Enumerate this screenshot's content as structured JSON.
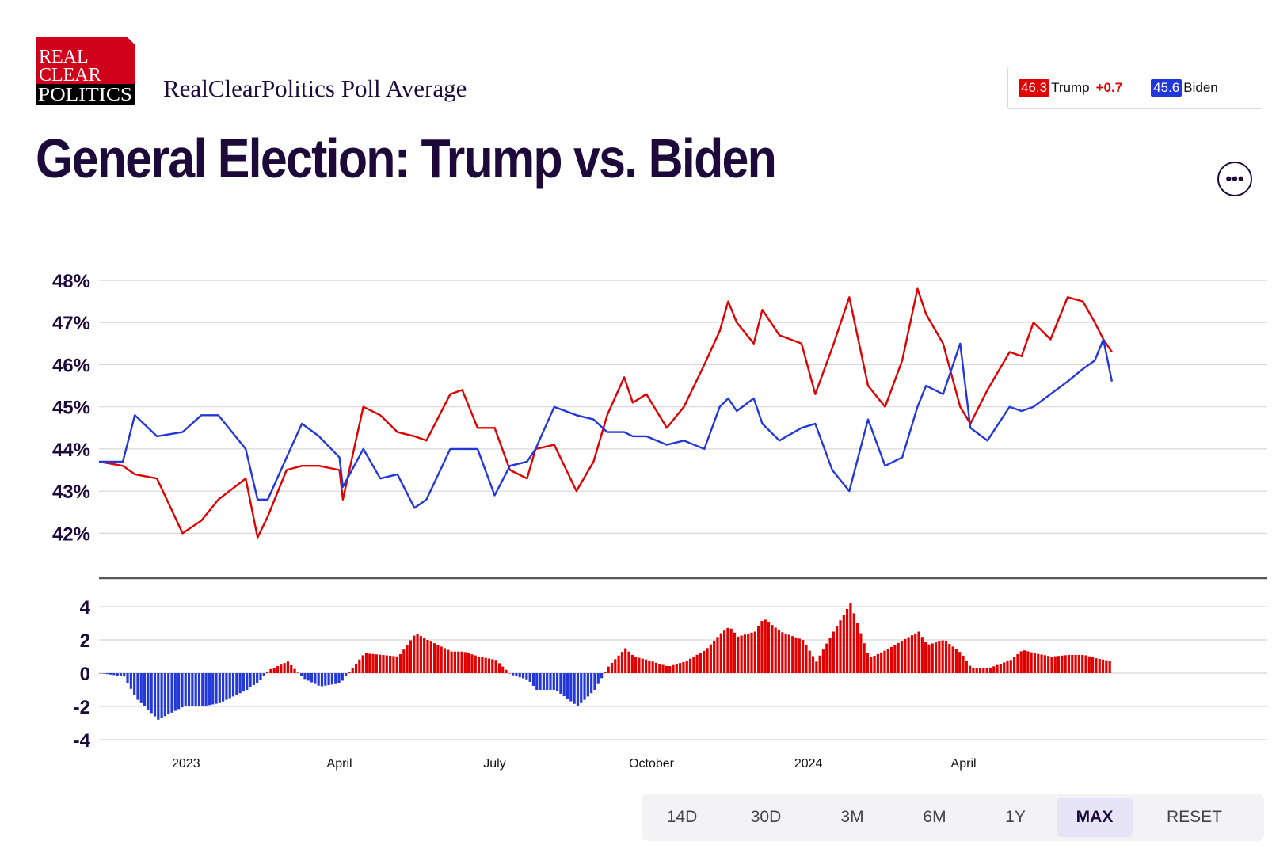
{
  "header": {
    "logo_lines": [
      "REAL",
      "CLEAR",
      "POLITICS"
    ],
    "subtitle": "RealClearPolitics Poll Average",
    "title": "General Election: Trump vs. Biden"
  },
  "legend": {
    "trump": {
      "value": "46.3",
      "name": "Trump",
      "change": "+0.7",
      "color": "#e00000"
    },
    "biden": {
      "value": "45.6",
      "name": "Biden",
      "color": "#2338d8"
    }
  },
  "icons": {
    "more": "more-options-icon"
  },
  "ranges": {
    "items": [
      "14D",
      "30D",
      "3M",
      "6M",
      "1Y",
      "MAX",
      "RESET"
    ],
    "selected": "MAX"
  },
  "colors": {
    "trump": "#e00000",
    "biden": "#2338d8",
    "text": "#1d0a3a",
    "grid": "#d8d8d8"
  },
  "chart_data": [
    {
      "type": "line",
      "y_ticks": [
        "48%",
        "47%",
        "46%",
        "45%",
        "44%",
        "43%",
        "42%"
      ],
      "ylim": [
        41.5,
        48.3
      ],
      "xlim": [
        "2022-11-11",
        "2024-07-24"
      ],
      "x_ticks": [
        {
          "label": "2023",
          "date": "2023-01-01"
        },
        {
          "label": "April",
          "date": "2023-04-01"
        },
        {
          "label": "July",
          "date": "2023-07-01"
        },
        {
          "label": "October",
          "date": "2023-10-01"
        },
        {
          "label": "2024",
          "date": "2024-01-01"
        },
        {
          "label": "April",
          "date": "2024-04-01"
        }
      ],
      "series": [
        {
          "name": "Trump",
          "color": "#e00000",
          "x": [
            "2022-11-11",
            "2022-11-25",
            "2022-12-02",
            "2022-12-15",
            "2022-12-30",
            "2023-01-10",
            "2023-01-20",
            "2023-02-05",
            "2023-02-12",
            "2023-02-18",
            "2023-03-01",
            "2023-03-10",
            "2023-03-20",
            "2023-04-01",
            "2023-04-03",
            "2023-04-15",
            "2023-04-25",
            "2023-05-05",
            "2023-05-15",
            "2023-05-22",
            "2023-06-05",
            "2023-06-12",
            "2023-06-21",
            "2023-07-01",
            "2023-07-10",
            "2023-07-20",
            "2023-07-25",
            "2023-08-05",
            "2023-08-18",
            "2023-08-28",
            "2023-09-05",
            "2023-09-15",
            "2023-09-20",
            "2023-09-28",
            "2023-10-10",
            "2023-10-20",
            "2023-11-01",
            "2023-11-10",
            "2023-11-15",
            "2023-11-20",
            "2023-11-30",
            "2023-12-05",
            "2023-12-15",
            "2023-12-28",
            "2024-01-05",
            "2024-01-15",
            "2024-01-25",
            "2024-02-05",
            "2024-02-15",
            "2024-02-25",
            "2024-03-05",
            "2024-03-10",
            "2024-03-20",
            "2024-03-30",
            "2024-04-05",
            "2024-04-15",
            "2024-04-28",
            "2024-05-05",
            "2024-05-12",
            "2024-05-22",
            "2024-06-01",
            "2024-06-10",
            "2024-06-17",
            "2024-06-22",
            "2024-06-27"
          ],
          "y": [
            43.7,
            43.6,
            43.4,
            43.3,
            42.0,
            42.3,
            42.8,
            43.3,
            41.9,
            42.4,
            43.5,
            43.6,
            43.6,
            43.5,
            42.8,
            45.0,
            44.8,
            44.4,
            44.3,
            44.2,
            45.3,
            45.4,
            44.5,
            44.5,
            43.5,
            43.3,
            44.0,
            44.1,
            43.0,
            43.7,
            44.8,
            45.7,
            45.1,
            45.3,
            44.5,
            45.0,
            46.0,
            46.8,
            47.5,
            47.0,
            46.5,
            47.3,
            46.7,
            46.5,
            45.3,
            46.4,
            47.6,
            45.5,
            45.0,
            46.1,
            47.8,
            47.2,
            46.5,
            45.0,
            44.6,
            45.4,
            46.3,
            46.2,
            47.0,
            46.6,
            47.6,
            47.5,
            47.0,
            46.6,
            46.3
          ]
        },
        {
          "name": "Biden",
          "color": "#2338d8",
          "x": [
            "2022-11-11",
            "2022-11-25",
            "2022-12-02",
            "2022-12-15",
            "2022-12-30",
            "2023-01-10",
            "2023-01-20",
            "2023-02-05",
            "2023-02-12",
            "2023-02-18",
            "2023-03-01",
            "2023-03-10",
            "2023-03-20",
            "2023-04-01",
            "2023-04-03",
            "2023-04-15",
            "2023-04-25",
            "2023-05-05",
            "2023-05-15",
            "2023-05-22",
            "2023-06-05",
            "2023-06-12",
            "2023-06-21",
            "2023-07-01",
            "2023-07-10",
            "2023-07-20",
            "2023-07-25",
            "2023-08-05",
            "2023-08-18",
            "2023-08-28",
            "2023-09-05",
            "2023-09-15",
            "2023-09-20",
            "2023-09-28",
            "2023-10-10",
            "2023-10-20",
            "2023-11-01",
            "2023-11-10",
            "2023-11-15",
            "2023-11-20",
            "2023-11-30",
            "2023-12-05",
            "2023-12-15",
            "2023-12-28",
            "2024-01-05",
            "2024-01-15",
            "2024-01-25",
            "2024-02-05",
            "2024-02-15",
            "2024-02-25",
            "2024-03-05",
            "2024-03-10",
            "2024-03-20",
            "2024-03-30",
            "2024-04-05",
            "2024-04-15",
            "2024-04-28",
            "2024-05-05",
            "2024-05-12",
            "2024-05-22",
            "2024-06-01",
            "2024-06-10",
            "2024-06-17",
            "2024-06-22",
            "2024-06-27"
          ],
          "y": [
            43.7,
            43.7,
            44.8,
            44.3,
            44.4,
            44.8,
            44.8,
            44.0,
            42.8,
            42.8,
            43.8,
            44.6,
            44.3,
            43.8,
            43.1,
            44.0,
            43.3,
            43.4,
            42.6,
            42.8,
            44.0,
            44.0,
            44.0,
            42.9,
            43.6,
            43.7,
            44.0,
            45.0,
            44.8,
            44.7,
            44.4,
            44.4,
            44.3,
            44.3,
            44.1,
            44.2,
            44.0,
            45.0,
            45.2,
            44.9,
            45.2,
            44.6,
            44.2,
            44.5,
            44.6,
            43.5,
            43.0,
            44.7,
            43.6,
            43.8,
            45.0,
            45.5,
            45.3,
            46.5,
            44.5,
            44.2,
            45.0,
            44.9,
            45.0,
            45.3,
            45.6,
            45.9,
            46.1,
            46.6,
            45.6
          ]
        }
      ]
    },
    {
      "type": "bar",
      "y_ticks": [
        "4",
        "2",
        "0",
        "-2",
        "-4"
      ],
      "ylim": [
        -4,
        4
      ],
      "series": [
        {
          "name": "Spread",
          "x": [
            "2022-11-11",
            "2022-11-25",
            "2022-12-02",
            "2022-12-15",
            "2022-12-30",
            "2023-01-10",
            "2023-01-20",
            "2023-02-05",
            "2023-02-12",
            "2023-02-18",
            "2023-03-01",
            "2023-03-10",
            "2023-03-20",
            "2023-04-01",
            "2023-04-03",
            "2023-04-15",
            "2023-04-25",
            "2023-05-05",
            "2023-05-15",
            "2023-05-22",
            "2023-06-05",
            "2023-06-12",
            "2023-06-21",
            "2023-07-01",
            "2023-07-10",
            "2023-07-20",
            "2023-07-25",
            "2023-08-05",
            "2023-08-18",
            "2023-08-28",
            "2023-09-05",
            "2023-09-15",
            "2023-09-20",
            "2023-09-28",
            "2023-10-10",
            "2023-10-20",
            "2023-11-01",
            "2023-11-10",
            "2023-11-15",
            "2023-11-20",
            "2023-11-30",
            "2023-12-05",
            "2023-12-15",
            "2023-12-28",
            "2024-01-05",
            "2024-01-15",
            "2024-01-25",
            "2024-02-05",
            "2024-02-15",
            "2024-02-25",
            "2024-03-05",
            "2024-03-10",
            "2024-03-20",
            "2024-03-30",
            "2024-04-05",
            "2024-04-15",
            "2024-04-28",
            "2024-05-05",
            "2024-05-12",
            "2024-05-22",
            "2024-06-01",
            "2024-06-10",
            "2024-06-17",
            "2024-06-22",
            "2024-06-27"
          ],
          "y": [
            0,
            -0.2,
            -1.5,
            -2.8,
            -2.0,
            -2.0,
            -1.8,
            -1.0,
            -0.5,
            0.2,
            0.7,
            -0.3,
            -0.8,
            -0.6,
            -0.3,
            1.2,
            1.1,
            1.0,
            2.4,
            2.0,
            1.3,
            1.3,
            1.0,
            0.8,
            -0.1,
            -0.4,
            -1.0,
            -1.0,
            -2.0,
            -1.0,
            0.4,
            1.5,
            1.0,
            0.8,
            0.4,
            0.7,
            1.4,
            2.4,
            2.8,
            2.2,
            2.5,
            3.3,
            2.5,
            2.0,
            0.7,
            2.5,
            4.2,
            0.9,
            1.4,
            2.0,
            2.5,
            1.7,
            2.0,
            1.2,
            0.3,
            0.3,
            0.8,
            1.4,
            1.2,
            1.0,
            1.1,
            1.1,
            0.9,
            0.8,
            0.7
          ]
        }
      ]
    }
  ]
}
